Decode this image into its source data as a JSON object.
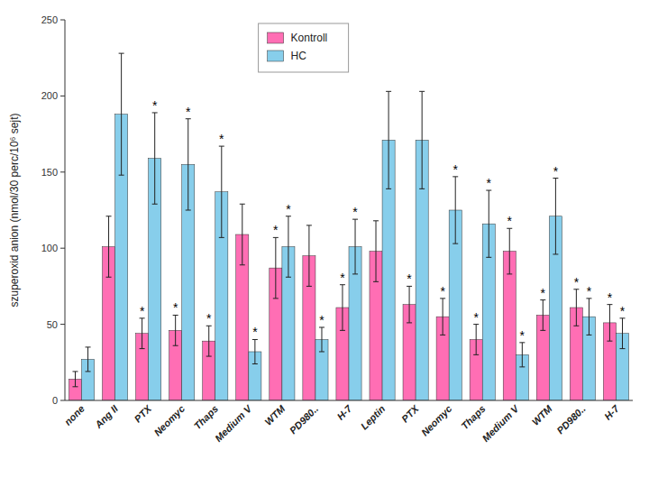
{
  "chart_data": {
    "type": "bar",
    "y_label": "szuperoxid anion (nmol/30 perc/10⁶ sejt)",
    "categories": [
      "none",
      "Ang II",
      "PTX",
      "Neomyc",
      "Thaps",
      "Medium V",
      "WTM",
      "PD980..",
      "H-7",
      "Leptin",
      "PTX",
      "Neomyc",
      "Thaps",
      "Medium V",
      "WTM",
      "PD980..",
      "H-7"
    ],
    "series": [
      {
        "name": "Kontroll",
        "color": "#FF6EB4",
        "values": [
          14,
          101,
          44,
          46,
          39,
          109,
          87,
          95,
          61,
          98,
          63,
          55,
          40,
          98,
          56,
          61,
          51
        ],
        "errors": [
          5,
          20,
          10,
          10,
          10,
          20,
          20,
          20,
          15,
          20,
          12,
          12,
          10,
          15,
          10,
          12,
          12
        ],
        "annotations": [
          null,
          null,
          "*",
          "*",
          "*",
          null,
          "*",
          null,
          "*",
          null,
          "*",
          "*",
          "*",
          "*",
          "*",
          "*",
          "*"
        ]
      },
      {
        "name": "HC",
        "color": "#87CEEB",
        "values": [
          27,
          188,
          159,
          155,
          137,
          32,
          101,
          40,
          101,
          171,
          171,
          125,
          116,
          30,
          121,
          55,
          44
        ],
        "errors": [
          8,
          40,
          30,
          30,
          30,
          8,
          20,
          8,
          18,
          32,
          32,
          22,
          22,
          8,
          25,
          12,
          10
        ],
        "annotations": [
          null,
          null,
          "*",
          "*",
          "*",
          "*",
          "*",
          "*",
          "*",
          null,
          null,
          "*",
          "*",
          "*",
          "*",
          "*",
          "*"
        ]
      }
    ],
    "ylim": [
      0,
      250
    ],
    "yticks": [
      0,
      50,
      100,
      150,
      200,
      250
    ],
    "grid": false,
    "legend": "upper center"
  }
}
